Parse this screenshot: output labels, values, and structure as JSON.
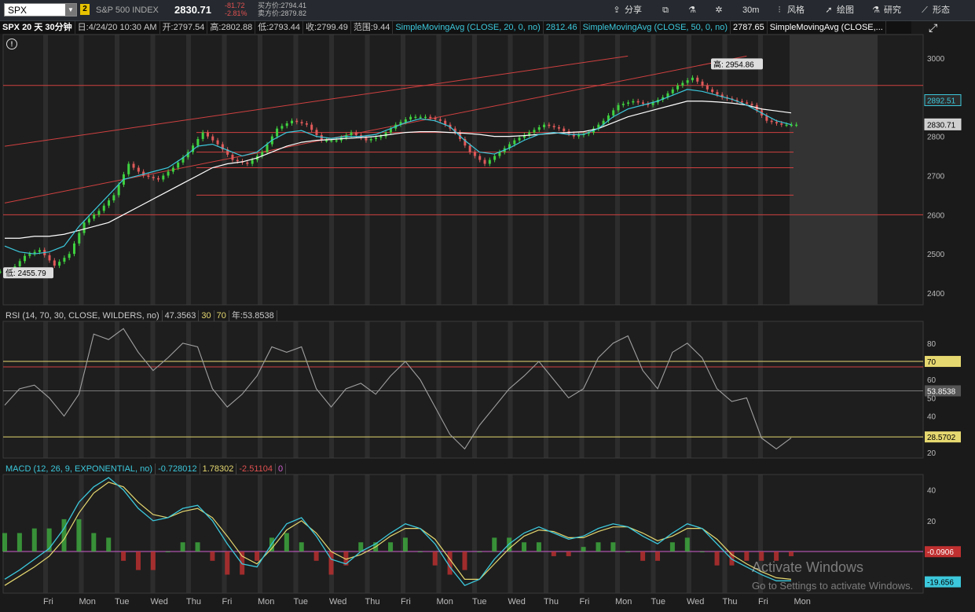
{
  "toolbar": {
    "symbol": "SPX",
    "symbol_dropdown": "▼",
    "link_badge": "2",
    "index_name": "S&P 500 INDEX",
    "last_price": "2830.71",
    "change": "-81.72",
    "change_pct": "-2.81%",
    "bid": "买方价:2794.41",
    "ask": "卖方价:2879.82",
    "share_label": "分享",
    "timeframe_label": "30m",
    "style_label": "风格",
    "draw_label": "绘图",
    "study_label": "研究",
    "pattern_label": "形态"
  },
  "infobar": {
    "title": "SPX 20 天 30分钟",
    "date": "日:4/24/20 10:30 AM",
    "open": "开:2797.54",
    "high": "高:2802.88",
    "low": "低:2793.44",
    "close": "收:2799.49",
    "range": "范围:9.44",
    "sma20_label": "SimpleMovingAvg (CLOSE, 20, 0, no)",
    "sma20_value": "2812.46",
    "sma50_label": "SimpleMovingAvg (CLOSE, 50, 0, no)",
    "sma50_value": "2787.65",
    "sma_other_label": "SimpleMovingAvg (CLOSE,..."
  },
  "rsi": {
    "label": "RSI (14, 70, 30, CLOSE, WILDERS, no)",
    "value": "47.3563",
    "oversold": "30",
    "overbought": "70",
    "year_label": "年:53.8538"
  },
  "macd": {
    "label": "MACD (12, 26, 9, EXPONENTIAL, no)",
    "value": "-0.728012",
    "avg": "1.78302",
    "diff": "-2.51104",
    "zero": "0"
  },
  "watermark": {
    "line1": "Activate Windows",
    "line2": "Go to Settings to activate Windows."
  },
  "colors": {
    "background": "#1a1a1a",
    "up_candle": "#3fd13f",
    "down_candle": "#e05a5a",
    "sma20": "#3cc8dc",
    "sma50": "#ffffff",
    "resistance": "#d04040",
    "overbought_line": "#e6d870",
    "rsi_line": "#a0a0a0"
  },
  "chart_data": [
    {
      "type": "candlestick",
      "name": "price",
      "y_ticks": [
        2400,
        2500,
        2600,
        2700,
        2800,
        2900,
        3000
      ],
      "ylim": [
        2370,
        3060
      ],
      "x_ticks": [
        "Fri",
        "Mon",
        "Tue",
        "Wed",
        "Thu",
        "Fri",
        "Mon",
        "Tue",
        "Wed",
        "Thu",
        "Fri",
        "Mon",
        "Tue",
        "Wed",
        "Thu",
        "Fri",
        "Mon",
        "Tue",
        "Wed",
        "Thu",
        "Fri",
        "Mon"
      ],
      "high_label": "高: 2954.86",
      "low_label": "低: 2455.79",
      "price_tags": [
        {
          "value": 2892.51,
          "label": "2892.51",
          "color": "#3cc8dc"
        },
        {
          "value": 2830.71,
          "label": "2830.71",
          "color": "#dddddd"
        }
      ],
      "close_path": [
        2455,
        2495,
        2510,
        2470,
        2500,
        2580,
        2610,
        2650,
        2730,
        2700,
        2690,
        2720,
        2760,
        2810,
        2780,
        2740,
        2730,
        2760,
        2820,
        2840,
        2830,
        2790,
        2790,
        2810,
        2790,
        2800,
        2830,
        2850,
        2850,
        2840,
        2810,
        2760,
        2730,
        2760,
        2790,
        2810,
        2830,
        2820,
        2800,
        2810,
        2840,
        2880,
        2890,
        2880,
        2900,
        2930,
        2950,
        2920,
        2900,
        2890,
        2880,
        2840,
        2830,
        2830
      ],
      "sma20_path": [
        2520,
        2505,
        2500,
        2505,
        2520,
        2570,
        2610,
        2650,
        2690,
        2700,
        2710,
        2720,
        2745,
        2775,
        2780,
        2765,
        2750,
        2760,
        2790,
        2810,
        2815,
        2800,
        2795,
        2800,
        2800,
        2805,
        2820,
        2835,
        2845,
        2840,
        2825,
        2790,
        2760,
        2755,
        2770,
        2790,
        2805,
        2810,
        2805,
        2805,
        2820,
        2850,
        2870,
        2880,
        2890,
        2905,
        2920,
        2915,
        2905,
        2895,
        2880,
        2860,
        2840,
        2830
      ],
      "sma50_path": [
        2540,
        2540,
        2545,
        2545,
        2550,
        2560,
        2570,
        2580,
        2600,
        2620,
        2640,
        2660,
        2680,
        2700,
        2720,
        2730,
        2735,
        2745,
        2760,
        2775,
        2785,
        2790,
        2792,
        2795,
        2797,
        2800,
        2805,
        2810,
        2812,
        2812,
        2810,
        2808,
        2805,
        2800,
        2800,
        2802,
        2805,
        2808,
        2810,
        2812,
        2820,
        2835,
        2850,
        2860,
        2870,
        2880,
        2890,
        2890,
        2888,
        2885,
        2880,
        2870,
        2865,
        2860
      ],
      "horizontal_levels": [
        2600,
        2650,
        2720,
        2760,
        2810,
        2930
      ],
      "trendlines": [
        {
          "from": [
            0,
            2775
          ],
          "to": [
            42,
            3005
          ]
        },
        {
          "from": [
            0,
            2630
          ],
          "to": [
            50,
            3005
          ]
        }
      ]
    },
    {
      "type": "line",
      "name": "RSI",
      "y_ticks": [
        20,
        30,
        40,
        50,
        60,
        70,
        80
      ],
      "ylim": [
        17,
        92
      ],
      "levels": [
        {
          "value": 70,
          "label": "70"
        },
        {
          "value": 28.5702,
          "label": "28.5702"
        },
        {
          "value": 53.8538,
          "label": "53.8538"
        }
      ],
      "values": [
        46,
        55,
        57,
        50,
        40,
        52,
        85,
        82,
        88,
        75,
        65,
        72,
        80,
        78,
        55,
        45,
        52,
        62,
        78,
        75,
        78,
        55,
        45,
        55,
        58,
        52,
        62,
        70,
        60,
        45,
        30,
        22,
        35,
        45,
        55,
        62,
        70,
        60,
        50,
        55,
        72,
        80,
        84,
        65,
        55,
        75,
        80,
        72,
        55,
        48,
        50,
        28,
        22,
        28
      ]
    },
    {
      "type": "bar+line",
      "name": "MACD",
      "y_ticks": [
        -20,
        0,
        20,
        40
      ],
      "ylim": [
        -27,
        50
      ],
      "tags": [
        {
          "value": -0.0906,
          "label": "-0.0906"
        },
        {
          "value": -19.656,
          "label": "-19.656"
        }
      ],
      "macd": [
        -18,
        -12,
        -5,
        2,
        15,
        32,
        42,
        48,
        40,
        28,
        20,
        22,
        28,
        30,
        20,
        5,
        -8,
        -10,
        5,
        18,
        22,
        10,
        -5,
        -8,
        0,
        5,
        12,
        18,
        15,
        5,
        -10,
        -22,
        -18,
        -5,
        5,
        12,
        16,
        12,
        8,
        10,
        15,
        18,
        16,
        10,
        5,
        12,
        18,
        15,
        5,
        -5,
        -10,
        -15,
        -19,
        -19
      ],
      "signal": [
        -22,
        -16,
        -10,
        -3,
        8,
        25,
        38,
        45,
        42,
        32,
        24,
        22,
        26,
        28,
        22,
        10,
        -3,
        -8,
        2,
        14,
        20,
        12,
        0,
        -5,
        -2,
        3,
        10,
        15,
        15,
        8,
        -5,
        -18,
        -18,
        -8,
        2,
        10,
        14,
        13,
        9,
        9,
        13,
        16,
        16,
        12,
        7,
        10,
        15,
        15,
        8,
        -2,
        -8,
        -13,
        -17,
        -18
      ]
    }
  ]
}
